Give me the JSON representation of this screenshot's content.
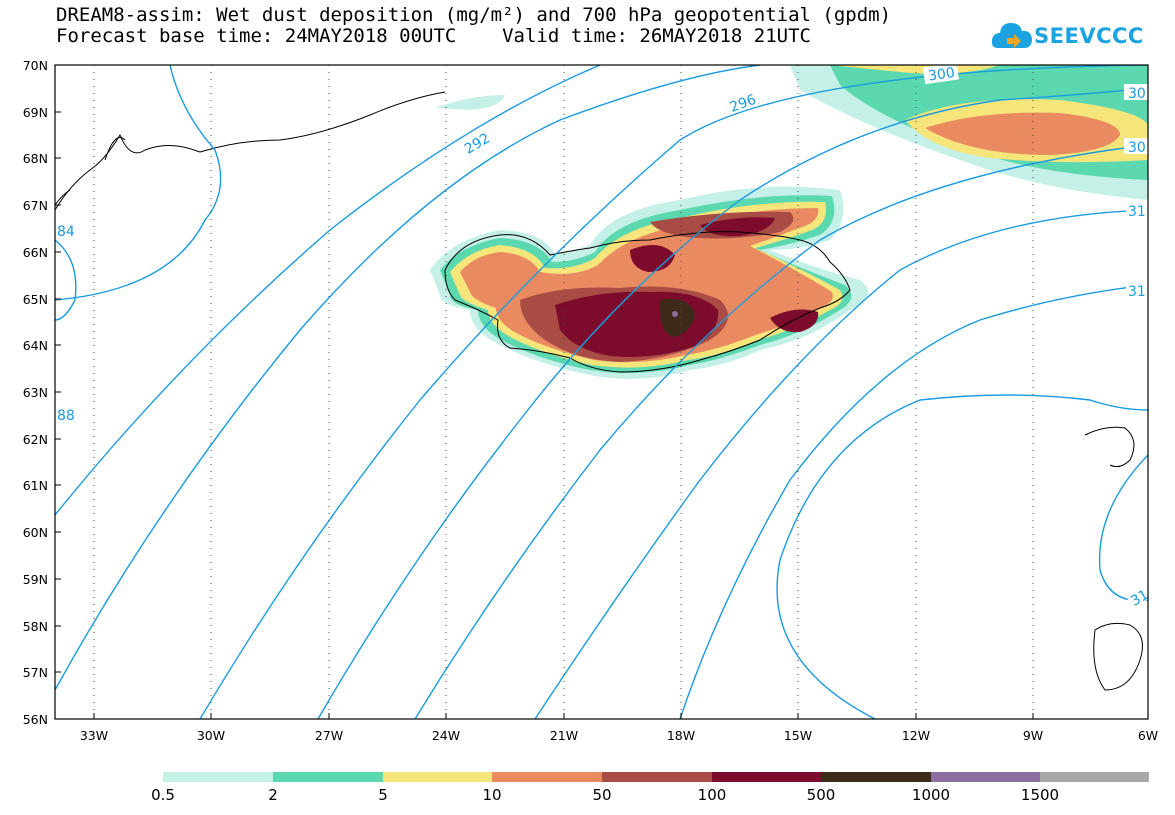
{
  "header": {
    "line1": "DREAM8-assim: Wet dust deposition (mg/m²) and 700 hPa geopotential (gpdm)",
    "line2": "Forecast base time: 24MAY2018 00UTC    Valid time: 26MAY2018 21UTC"
  },
  "logo": {
    "text": "SEEVCCC",
    "icon": "cloud-icon"
  },
  "map": {
    "lat_labels": [
      "70N",
      "69N",
      "68N",
      "67N",
      "66N",
      "65N",
      "64N",
      "63N",
      "62N",
      "61N",
      "60N",
      "59N",
      "58N",
      "57N",
      "56N"
    ],
    "lon_labels": [
      "33W",
      "30W",
      "27W",
      "24W",
      "21W",
      "18W",
      "15W",
      "12W",
      "9W",
      "6W"
    ],
    "contour_color": "#1a9be0",
    "contour_labels": [
      "296",
      "300",
      "30",
      "30",
      "292",
      "31",
      "31",
      "84",
      "88",
      "31"
    ]
  },
  "legend": {
    "labels": [
      "0.5",
      "2",
      "5",
      "10",
      "50",
      "100",
      "500",
      "1000",
      "1500"
    ],
    "colors": [
      "#c5f0e8",
      "#5cd8b0",
      "#f5e57a",
      "#e98a60",
      "#a84c45",
      "#7d0b2b",
      "#3d2a18",
      "#8c6ea0",
      "#a8a8a8"
    ]
  }
}
